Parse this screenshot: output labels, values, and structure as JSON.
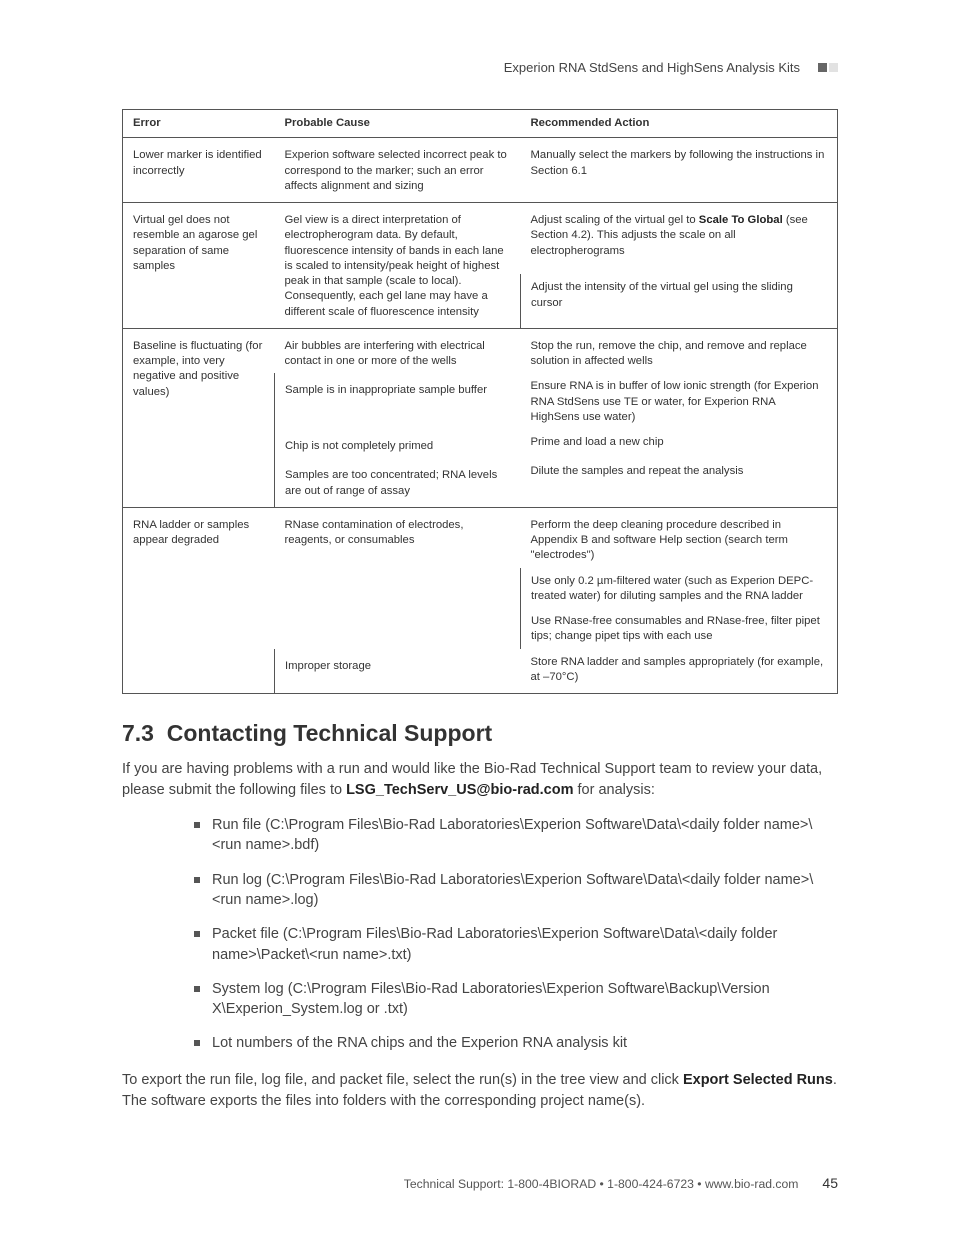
{
  "header": {
    "title": "Experion RNA StdSens and HighSens Analysis Kits"
  },
  "table": {
    "headers": [
      "Error",
      "Probable Cause",
      "Recommended Action"
    ],
    "rows": [
      {
        "error": "Lower marker is identified incorrectly",
        "blocks": [
          {
            "cause": "Experion software selected incorrect peak to correspond to the marker; such an error affects alignment and sizing",
            "actions": [
              "Manually select the markers by following the instructions in Section 6.1"
            ]
          }
        ]
      },
      {
        "error": "Virtual gel does not resemble an agarose gel separation of same samples",
        "blocks": [
          {
            "cause": "Gel view is a direct interpretation of electropherogram data. By default, fluorescence intensity of bands in each lane is scaled to intensity/peak height of highest peak in that sample (scale to local). Consequently, each gel lane may have a different scale of fluorescence intensity",
            "actions": [
              "Adjust scaling of the virtual gel to <b>Scale To Global</b> (see Section 4.2). This adjusts the scale on all electropherograms",
              "Adjust the intensity of the virtual gel using the sliding cursor"
            ]
          }
        ]
      },
      {
        "error": "Baseline is fluctuating (for example, into very negative and positive values)",
        "blocks": [
          {
            "cause": "Air bubbles are interfering with electrical contact in one or more of the wells",
            "actions": [
              "Stop the run, remove the chip, and remove and replace solution in affected wells"
            ]
          },
          {
            "cause": "Sample is in inappropriate sample buffer",
            "actions": [
              "Ensure RNA is in buffer of low ionic strength (for Experion RNA StdSens use TE or water, for Experion RNA HighSens use water)"
            ]
          },
          {
            "cause": "Chip is not completely primed",
            "actions": [
              "Prime and load a new chip"
            ]
          },
          {
            "cause": "Samples are too concentrated; RNA levels are out of range of assay",
            "actions": [
              "Dilute the samples and repeat the analysis"
            ]
          }
        ]
      },
      {
        "error": "RNA ladder or samples appear degraded",
        "blocks": [
          {
            "cause": "RNase contamination of electrodes, reagents, or consumables",
            "actions": [
              "Perform the deep cleaning procedure described in Appendix B and software Help section (search term \"electrodes\")",
              "Use only 0.2 µm-filtered water (such as Experion DEPC-treated water) for diluting samples and the RNA ladder",
              "Use RNase-free consumables and RNase-free, filter pipet tips; change pipet tips with each use"
            ]
          },
          {
            "cause": "Improper storage",
            "actions": [
              "Store RNA ladder and samples appropriately (for example, at –70°C)"
            ]
          }
        ]
      }
    ]
  },
  "section": {
    "number": "7.3",
    "title": "Contacting Technical Support",
    "intro_pre": "If you are having problems with a run and would like the Bio-Rad Technical Support team to review your data, please submit the following files to ",
    "intro_bold": "LSG_TechServ_US@bio-rad.com",
    "intro_post": " for analysis:",
    "items": [
      "Run file (C:\\Program Files\\Bio-Rad Laboratories\\Experion Software\\Data\\<daily folder name>\\<run name>.bdf)",
      "Run log (C:\\Program Files\\Bio-Rad Laboratories\\Experion Software\\Data\\<daily folder name>\\<run name>.log)",
      "Packet file (C:\\Program Files\\Bio-Rad Laboratories\\Experion Software\\Data\\<daily folder name>\\Packet\\<run name>.txt)",
      "System log (C:\\Program Files\\Bio-Rad Laboratories\\Experion Software\\Backup\\Version X\\Experion_System.log or .txt)",
      "Lot numbers of the RNA chips and the Experion RNA analysis kit"
    ],
    "outro_pre": "To export the run file, log file, and packet file, select the run(s) in the tree view and click ",
    "outro_bold": "Export Selected Runs",
    "outro_post": ". The software exports the files into folders with the corresponding project name(s)."
  },
  "footer": {
    "text": "Technical Support: 1-800-4BIORAD • 1-800-424-6723 • www.bio-rad.com",
    "page": "45"
  }
}
